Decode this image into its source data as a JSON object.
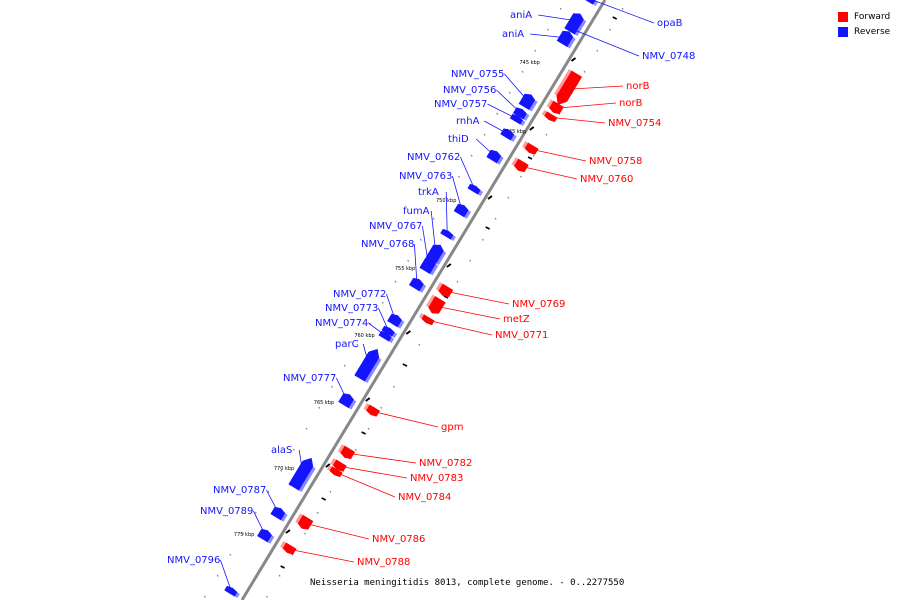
{
  "caption": "Neisseria meningitidis 8013, complete genome. - 0..2277550",
  "colors": {
    "forward": "#ff0000",
    "reverse": "#1414ff",
    "backbone": "#888888"
  },
  "legend": [
    {
      "label": "Forward",
      "color": "#ff0000"
    },
    {
      "label": "Reverse",
      "color": "#1414ff"
    }
  ],
  "ticks": [
    "745 kbp",
    "745 kbp",
    "750 kbp",
    "755 kbp",
    "760 kbp",
    "765 kbp",
    "770 kbp",
    "775 kbp"
  ],
  "genes": [
    {
      "name": "aniA",
      "strand": "reverse"
    },
    {
      "name": "aniA",
      "strand": "reverse"
    },
    {
      "name": "opaB",
      "strand": "reverse"
    },
    {
      "name": "NMV_0748",
      "strand": "reverse"
    },
    {
      "name": "norB",
      "strand": "forward"
    },
    {
      "name": "norB",
      "strand": "forward"
    },
    {
      "name": "NMV_0754",
      "strand": "forward"
    },
    {
      "name": "NMV_0755",
      "strand": "reverse"
    },
    {
      "name": "NMV_0756",
      "strand": "reverse"
    },
    {
      "name": "NMV_0757",
      "strand": "reverse"
    },
    {
      "name": "rnhA",
      "strand": "reverse"
    },
    {
      "name": "thiD",
      "strand": "reverse"
    },
    {
      "name": "NMV_0758",
      "strand": "forward"
    },
    {
      "name": "NMV_0760",
      "strand": "forward"
    },
    {
      "name": "NMV_0762",
      "strand": "reverse"
    },
    {
      "name": "NMV_0763",
      "strand": "reverse"
    },
    {
      "name": "trkA",
      "strand": "reverse"
    },
    {
      "name": "fumA",
      "strand": "reverse"
    },
    {
      "name": "NMV_0767",
      "strand": "reverse"
    },
    {
      "name": "NMV_0768",
      "strand": "reverse"
    },
    {
      "name": "NMV_0769",
      "strand": "forward"
    },
    {
      "name": "metZ",
      "strand": "forward"
    },
    {
      "name": "NMV_0771",
      "strand": "forward"
    },
    {
      "name": "NMV_0772",
      "strand": "reverse"
    },
    {
      "name": "NMV_0773",
      "strand": "reverse"
    },
    {
      "name": "NMV_0774",
      "strand": "reverse"
    },
    {
      "name": "parC",
      "strand": "reverse"
    },
    {
      "name": "NMV_0777",
      "strand": "reverse"
    },
    {
      "name": "gpm",
      "strand": "forward"
    },
    {
      "name": "alaS",
      "strand": "reverse"
    },
    {
      "name": "NMV_0782",
      "strand": "forward"
    },
    {
      "name": "NMV_0783",
      "strand": "forward"
    },
    {
      "name": "NMV_0784",
      "strand": "forward"
    },
    {
      "name": "NMV_0787",
      "strand": "reverse"
    },
    {
      "name": "NMV_0789",
      "strand": "reverse"
    },
    {
      "name": "NMV_0786",
      "strand": "forward"
    },
    {
      "name": "NMV_0788",
      "strand": "forward"
    },
    {
      "name": "NMV_0796",
      "strand": "reverse"
    }
  ]
}
